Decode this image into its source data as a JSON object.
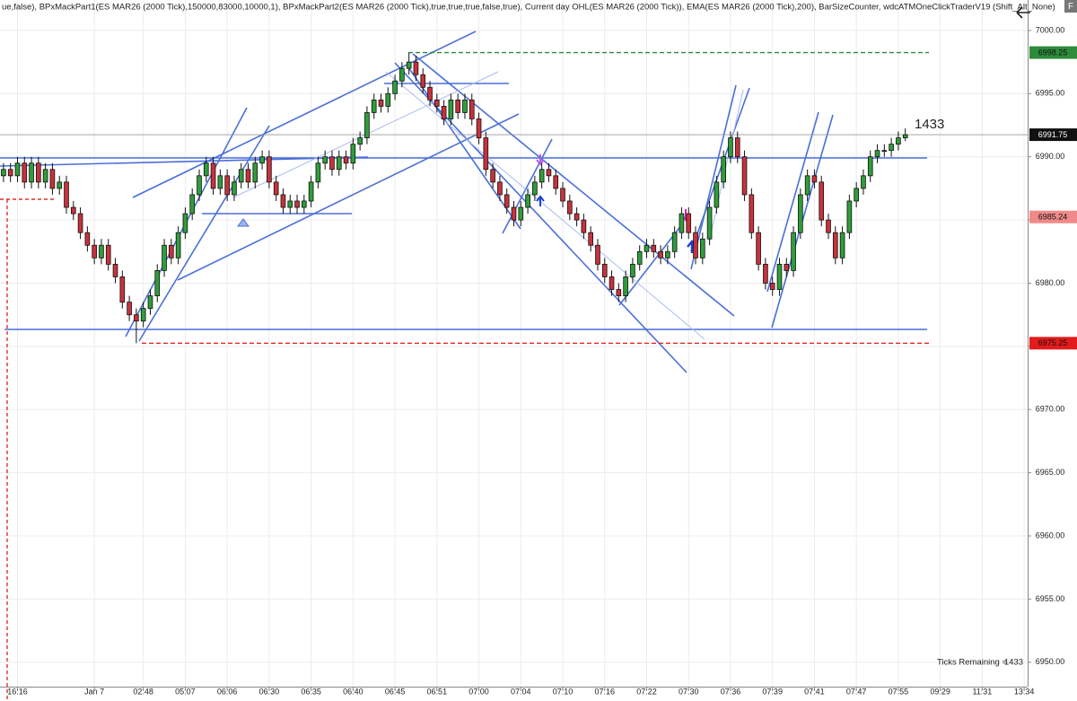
{
  "chart_data": {
    "type": "candlestick",
    "title": "ue,false), BPxMackPart1(ES MAR26 (2000 Tick),150000,83000,10000,1), BPxMackPart2(ES MAR26 (2000 Tick),true,true,true,false,true), Current day OHL(ES MAR26 (2000 Tick)), EMA(ES MAR26 (2000 Tick),200), BarSizeCounter, wdcATMOneClickTraderV19 (Shift_Alt_None)",
    "corner_button": "F",
    "bar_counter": 1433,
    "ticks_remaining": {
      "label": "Ticks Remaining =",
      "value": 1433
    },
    "up_color": "#2f9e3a",
    "down_color": "#c8323c",
    "grid": true,
    "ylim": [
      6948.07,
      7002.41
    ],
    "yticks": [
      {
        "value": 6950,
        "label": "6950.00"
      },
      {
        "value": 6955,
        "label": "6955.00"
      },
      {
        "value": 6960,
        "label": "6960.00"
      },
      {
        "value": 6965,
        "label": "6965.00"
      },
      {
        "value": 6970,
        "label": "6970.00"
      },
      {
        "value": 6975,
        "label": "6975.00"
      },
      {
        "value": 6980,
        "label": "6980.00"
      },
      {
        "value": 6985,
        "label": "6985.00"
      },
      {
        "value": 6990,
        "label": "6990.00"
      },
      {
        "value": 6995,
        "label": "6995.00"
      },
      {
        "value": 7000,
        "label": "7000.00"
      }
    ],
    "price_markers": [
      {
        "value": 6998.25,
        "label": "6998.25",
        "color": "#2e8b3a"
      },
      {
        "value": 6991.75,
        "label": "6991.75",
        "color": "#111111"
      },
      {
        "value": 6985.24,
        "label": "6985.24",
        "color": "#f08a8a"
      },
      {
        "value": 6975.25,
        "label": "6975.25",
        "color": "#e31b1b"
      }
    ],
    "categories": [
      null,
      null,
      "16:16",
      null,
      null,
      null,
      null,
      null,
      null,
      null,
      null,
      null,
      null,
      "Jan 7",
      null,
      null,
      null,
      null,
      null,
      null,
      "02:48",
      null,
      null,
      null,
      null,
      null,
      "05:07",
      null,
      null,
      null,
      null,
      null,
      "06:06",
      null,
      null,
      null,
      null,
      null,
      "06:30",
      null,
      null,
      null,
      null,
      null,
      "06:35",
      null,
      null,
      null,
      null,
      null,
      "06:40",
      null,
      null,
      null,
      null,
      null,
      "06:45",
      null,
      null,
      null,
      null,
      null,
      "06:51",
      null,
      null,
      null,
      null,
      null,
      "07:00",
      null,
      null,
      null,
      null,
      null,
      "07:04",
      null,
      null,
      null,
      null,
      null,
      "07:10",
      null,
      null,
      null,
      null,
      null,
      "07:16",
      null,
      null,
      null,
      null,
      null,
      "07:22",
      null,
      null,
      null,
      null,
      null,
      "07:30",
      null,
      null,
      null,
      null,
      null,
      "07:36",
      null,
      null,
      null,
      null,
      null,
      "07:39",
      null,
      null,
      null,
      null,
      null,
      "07:41",
      null,
      null,
      null,
      null,
      null,
      "07:47",
      null,
      null,
      null,
      null,
      null,
      "07:55",
      null,
      null,
      null,
      null,
      null,
      "09:29",
      null,
      null,
      null,
      null,
      null,
      "11:31",
      null,
      null,
      null,
      null,
      null,
      "13:34"
    ],
    "open": [
      6988.5,
      6989,
      6988.5,
      6989.5,
      6988,
      6989.5,
      6988,
      6989,
      6987.5,
      6988,
      6986,
      6985.5,
      6984,
      6983,
      6982,
      6983,
      6981.5,
      6980.5,
      6978.5,
      6977.5,
      6977,
      6978,
      6979,
      6981,
      6983,
      6982,
      6984,
      6985.5,
      6987,
      6988.5,
      6989.5,
      6987.5,
      6988.5,
      6987,
      6988,
      6989,
      6988,
      6989.5,
      6990,
      6988,
      6987,
      6986,
      6986.5,
      6986,
      6986.5,
      6988,
      6989.5,
      6990,
      6989,
      6990,
      6989.5,
      6991,
      6991.5,
      6993.5,
      6994.5,
      6994,
      6995,
      6996,
      6997,
      6997.5,
      6996.5,
      6995.5,
      6994.5,
      6994,
      6993,
      6994.5,
      6993.5,
      6994.5,
      6993,
      6991.5,
      6989,
      6988,
      6987,
      6986,
      6985,
      6986,
      6987,
      6988,
      6989,
      6988.5,
      6987.5,
      6986.5,
      6985.5,
      6985,
      6984,
      6983,
      6981.5,
      6980.5,
      6979.5,
      6979,
      6980.5,
      6981.5,
      6982.5,
      6983,
      6982.5,
      6982,
      6982.5,
      6984,
      6985.5,
      6984,
      6982,
      6983.5,
      6986,
      6988,
      6990,
      6991.5,
      6990,
      6987,
      6984,
      6981.5,
      6980,
      6979.5,
      6981.5,
      6981,
      6984,
      6987,
      6988.5,
      6988,
      6985,
      6984,
      6982,
      6984,
      6986.5,
      6987.5,
      6988.5,
      6990,
      6990.5,
      6990.5,
      6991,
      6991.5,
      null,
      null,
      null,
      null,
      null,
      null,
      null,
      null,
      null,
      null,
      null,
      null,
      null,
      null,
      null,
      null,
      null
    ],
    "high": [
      6989.5,
      6989.5,
      6990,
      6990,
      6990,
      6990,
      6989.5,
      6989.5,
      6988.5,
      6988.5,
      6986.5,
      6986,
      6984.5,
      6983.5,
      6983.5,
      6983.5,
      6982,
      6981,
      6979,
      6978,
      6978.5,
      6979.5,
      6981.5,
      6983.5,
      6983.5,
      6984.5,
      6986,
      6987.5,
      6989,
      6990,
      6990,
      6989,
      6989,
      6988.5,
      6989.5,
      6989.5,
      6990,
      6990.5,
      6990.5,
      6988.5,
      6987.5,
      6987,
      6987,
      6987,
      6988.5,
      6990,
      6990.5,
      6990.5,
      6990.5,
      6990.5,
      6991.5,
      6992,
      6994,
      6995,
      6995,
      6995.5,
      6996.5,
      6997.5,
      6998.25,
      6998,
      6997,
      6996,
      6995,
      6994.5,
      6995,
      6995,
      6995,
      6995,
      6993.5,
      6992,
      6989.5,
      6988.5,
      6987.5,
      6986.5,
      6986.5,
      6987.5,
      6988.5,
      6989.5,
      6989.5,
      6989,
      6988,
      6987,
      6986,
      6985.5,
      6984.5,
      6983.5,
      6982,
      6981,
      6980,
      6981,
      6982,
      6983,
      6983.5,
      6983.5,
      6983,
      6983,
      6984.5,
      6986,
      6986,
      6984.5,
      6984,
      6986.5,
      6988.5,
      6990.5,
      6992,
      6992,
      6990.5,
      6987.5,
      6984.5,
      6982,
      6980.5,
      6982,
      6982,
      6984.5,
      6987.5,
      6989,
      6989,
      6988.5,
      6985.5,
      6984.5,
      6984.5,
      6987,
      6988,
      6989,
      6990.5,
      6991,
      6991,
      6991.5,
      6992,
      6992.25,
      null,
      null,
      null,
      null,
      null,
      null,
      null,
      null,
      null,
      null,
      null,
      null,
      null,
      null,
      null,
      null,
      null
    ],
    "low": [
      6988,
      6988,
      6988,
      6987.5,
      6987.5,
      6987.5,
      6987.5,
      6987,
      6987,
      6985.5,
      6985,
      6983.5,
      6982.5,
      6981.5,
      6981.5,
      6981,
      6980,
      6978,
      6977,
      6975.25,
      6976.5,
      6977.5,
      6978.5,
      6980.5,
      6981.5,
      6981.5,
      6983.5,
      6985,
      6986.5,
      6988,
      6987,
      6987,
      6986.5,
      6986.5,
      6987.5,
      6987.5,
      6987.5,
      6989,
      6987.5,
      6986.5,
      6985.5,
      6985.5,
      6985.5,
      6985.5,
      6986,
      6987.5,
      6989,
      6988.5,
      6988.5,
      6989,
      6989,
      6990.5,
      6991,
      6993,
      6993.5,
      6993.5,
      6994.5,
      6995.5,
      6996.5,
      6996,
      6995,
      6994,
      6993.5,
      6992.5,
      6992.5,
      6993,
      6993,
      6992.5,
      6991,
      6988.5,
      6987.5,
      6986.5,
      6985.5,
      6984.5,
      6984.5,
      6985.5,
      6986.5,
      6987.5,
      6988,
      6987,
      6986,
      6985,
      6984.5,
      6983.5,
      6982.5,
      6981,
      6980,
      6979,
      6978.5,
      6978.5,
      6980,
      6981,
      6982,
      6982,
      6981.5,
      6981.5,
      6982,
      6983.5,
      6983.5,
      6981.5,
      6981.5,
      6983,
      6985.5,
      6987.5,
      6989.5,
      6989.5,
      6986.5,
      6983.5,
      6981,
      6979.5,
      6979,
      6979,
      6980.5,
      6980.5,
      6983.5,
      6986.5,
      6987.5,
      6984.5,
      6983.5,
      6981.5,
      6981.5,
      6983.5,
      6986,
      6987,
      6988,
      6989.5,
      6990,
      6990,
      6990.5,
      6991.25,
      null,
      null,
      null,
      null,
      null,
      null,
      null,
      null,
      null,
      null,
      null,
      null,
      null,
      null,
      null,
      null,
      null
    ],
    "close": [
      6989,
      6988.5,
      6989.5,
      6988,
      6989.5,
      6988,
      6989,
      6987.5,
      6988,
      6986,
      6985.5,
      6984,
      6983,
      6982,
      6983,
      6981.5,
      6980.5,
      6978.5,
      6977.5,
      6977,
      6978,
      6979,
      6981,
      6983,
      6982,
      6984,
      6985.5,
      6987,
      6988.5,
      6989.5,
      6987.5,
      6988.5,
      6987,
      6988,
      6989,
      6988,
      6989.5,
      6990,
      6988,
      6987,
      6986,
      6986.5,
      6986,
      6986.5,
      6988,
      6989.5,
      6990,
      6989,
      6990,
      6989.5,
      6991,
      6991.5,
      6993.5,
      6994.5,
      6994,
      6995,
      6996,
      6997,
      6997.5,
      6996.5,
      6995.5,
      6994.5,
      6994,
      6993,
      6994.5,
      6993.5,
      6994.5,
      6993,
      6991.5,
      6989,
      6988,
      6987,
      6986,
      6985,
      6986,
      6987,
      6988,
      6989,
      6988.5,
      6987.5,
      6986.5,
      6985.5,
      6985,
      6984,
      6983,
      6981.5,
      6980.5,
      6979.5,
      6979,
      6980.5,
      6981.5,
      6982.5,
      6983,
      6982.5,
      6982,
      6982.5,
      6984,
      6985.5,
      6984,
      6982,
      6983.5,
      6986,
      6988,
      6990,
      6991.5,
      6990,
      6987,
      6984,
      6981.5,
      6980,
      6979.5,
      6981.5,
      6981,
      6984,
      6987,
      6988.5,
      6988,
      6985,
      6984,
      6982,
      6984,
      6986.5,
      6987.5,
      6988.5,
      6990,
      6990.5,
      6990.5,
      6991,
      6991.5,
      6991.75,
      null,
      null,
      null,
      null,
      null,
      null,
      null,
      null,
      null,
      null,
      null,
      null,
      null,
      null,
      null,
      null,
      null
    ]
  }
}
